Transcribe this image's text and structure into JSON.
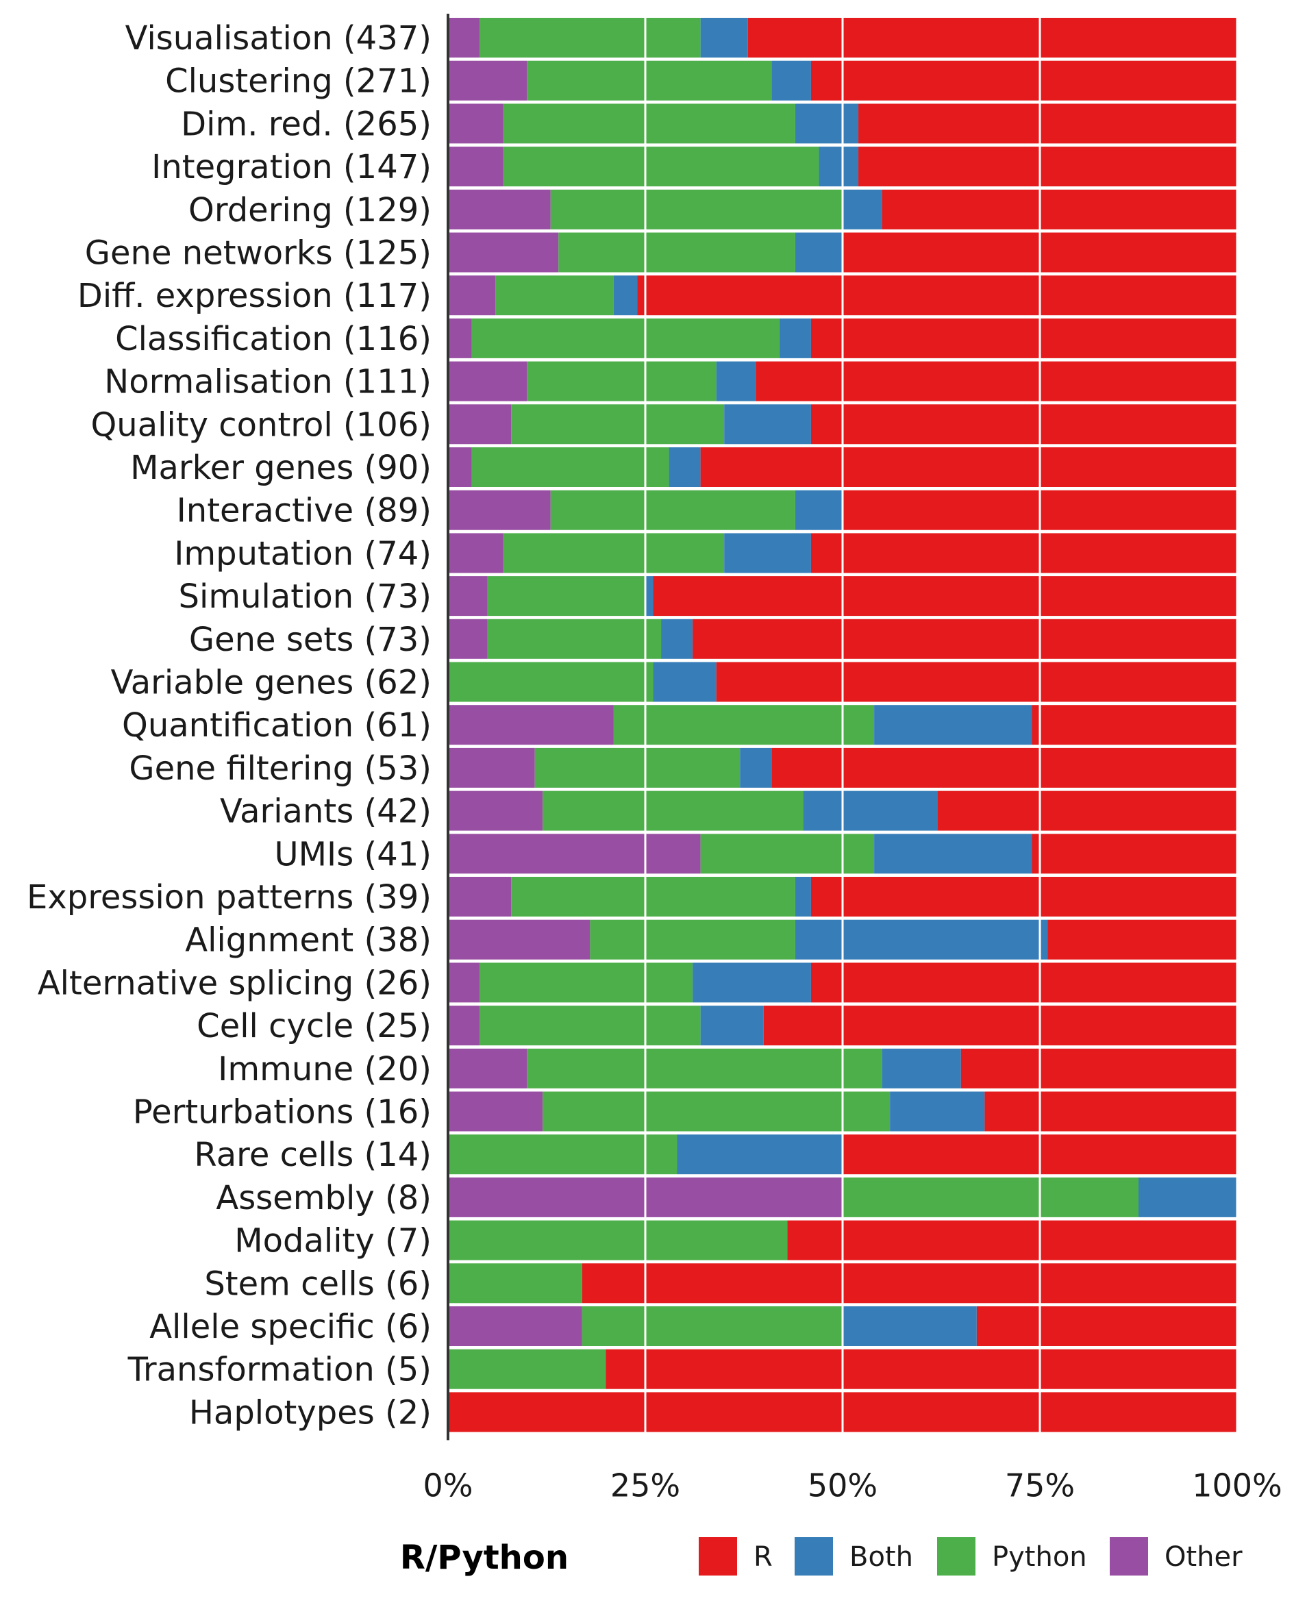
{
  "chart_data": {
    "type": "bar",
    "orientation": "horizontal",
    "stacked": true,
    "normalized": true,
    "categories": [
      "Visualisation (437)",
      "Clustering (271)",
      "Dim. red. (265)",
      "Integration (147)",
      "Ordering (129)",
      "Gene networks (125)",
      "Diff. expression (117)",
      "Classification (116)",
      "Normalisation (111)",
      "Quality control (106)",
      "Marker genes (90)",
      "Interactive (89)",
      "Imputation (74)",
      "Simulation (73)",
      "Gene sets (73)",
      "Variable genes (62)",
      "Quantification (61)",
      "Gene filtering (53)",
      "Variants (42)",
      "UMIs (41)",
      "Expression patterns (39)",
      "Alignment (38)",
      "Alternative splicing (26)",
      "Cell cycle (25)",
      "Immune (20)",
      "Perturbations (16)",
      "Rare cells (14)",
      "Assembly (8)",
      "Modality (7)",
      "Stem cells (6)",
      "Allele specific (6)",
      "Transformation (5)",
      "Haplotypes (2)"
    ],
    "series": [
      {
        "name": "Other",
        "color": "#984ea3",
        "values": [
          0.04,
          0.1,
          0.07,
          0.07,
          0.13,
          0.14,
          0.06,
          0.03,
          0.1,
          0.08,
          0.03,
          0.13,
          0.07,
          0.05,
          0.05,
          0.0,
          0.21,
          0.11,
          0.12,
          0.32,
          0.08,
          0.18,
          0.04,
          0.04,
          0.1,
          0.12,
          0.0,
          0.5,
          0.0,
          0.0,
          0.17,
          0.0,
          0.0
        ]
      },
      {
        "name": "Python",
        "color": "#4daf4a",
        "values": [
          0.28,
          0.31,
          0.37,
          0.4,
          0.37,
          0.3,
          0.15,
          0.39,
          0.24,
          0.27,
          0.25,
          0.31,
          0.28,
          0.2,
          0.22,
          0.26,
          0.33,
          0.26,
          0.33,
          0.22,
          0.36,
          0.26,
          0.27,
          0.28,
          0.45,
          0.44,
          0.29,
          0.375,
          0.43,
          0.17,
          0.33,
          0.2,
          0.0
        ]
      },
      {
        "name": "Both",
        "color": "#377eb8",
        "values": [
          0.06,
          0.05,
          0.08,
          0.05,
          0.05,
          0.06,
          0.03,
          0.04,
          0.05,
          0.11,
          0.04,
          0.06,
          0.11,
          0.01,
          0.04,
          0.08,
          0.2,
          0.04,
          0.17,
          0.2,
          0.02,
          0.32,
          0.15,
          0.08,
          0.1,
          0.12,
          0.21,
          0.125,
          0.0,
          0.0,
          0.17,
          0.0,
          0.0
        ]
      },
      {
        "name": "R",
        "color": "#e41a1c",
        "values": [
          0.62,
          0.54,
          0.48,
          0.48,
          0.45,
          0.5,
          0.76,
          0.54,
          0.61,
          0.54,
          0.68,
          0.5,
          0.54,
          0.74,
          0.69,
          0.66,
          0.26,
          0.59,
          0.38,
          0.26,
          0.54,
          0.24,
          0.54,
          0.6,
          0.35,
          0.32,
          0.5,
          0.0,
          0.57,
          0.83,
          0.33,
          0.8,
          1.0
        ]
      }
    ],
    "xlim": [
      0,
      1
    ],
    "x_ticks": [
      "0%",
      "25%",
      "50%",
      "75%",
      "100%"
    ],
    "grid": true,
    "legend": {
      "title": "R/Python",
      "placement": "bottom",
      "entries": [
        {
          "label": "R",
          "color": "#e41a1c"
        },
        {
          "label": "Both",
          "color": "#377eb8"
        },
        {
          "label": "Python",
          "color": "#4daf4a"
        },
        {
          "label": "Other",
          "color": "#984ea3"
        }
      ]
    }
  }
}
